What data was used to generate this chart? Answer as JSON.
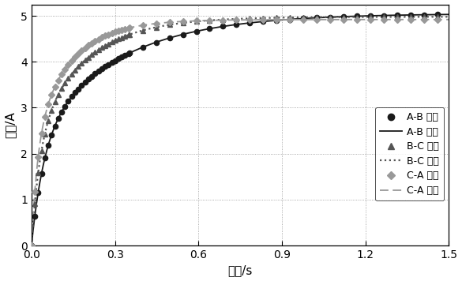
{
  "xlabel": "时间/s",
  "ylabel": "电流/A",
  "xlim": [
    0,
    1.5
  ],
  "ylim": [
    0,
    5.25
  ],
  "xticks": [
    0,
    0.3,
    0.6,
    0.9,
    1.2,
    1.5
  ],
  "yticks": [
    0,
    1,
    2,
    3,
    4,
    5
  ],
  "col_ab": "#1a1a1a",
  "col_bc": "#555555",
  "col_ca": "#999999",
  "curve_ab": {
    "I_inf": 5.05,
    "a1": 0.55,
    "tau1": 0.3,
    "a2": 0.45,
    "tau2": 0.045
  },
  "curve_bc": {
    "I_inf": 4.98,
    "a1": 0.55,
    "tau1": 0.18,
    "a2": 0.45,
    "tau2": 0.03
  },
  "curve_ca": {
    "I_inf": 4.92,
    "a1": 0.55,
    "tau1": 0.13,
    "a2": 0.45,
    "tau2": 0.022
  },
  "legend_labels": [
    "A-B 实测",
    "A-B 拟合",
    "B-C 实测",
    "B-C 拟合",
    "C-A 实测",
    "C-A 拟合"
  ],
  "figsize": [
    5.85,
    3.56
  ],
  "dpi": 100
}
